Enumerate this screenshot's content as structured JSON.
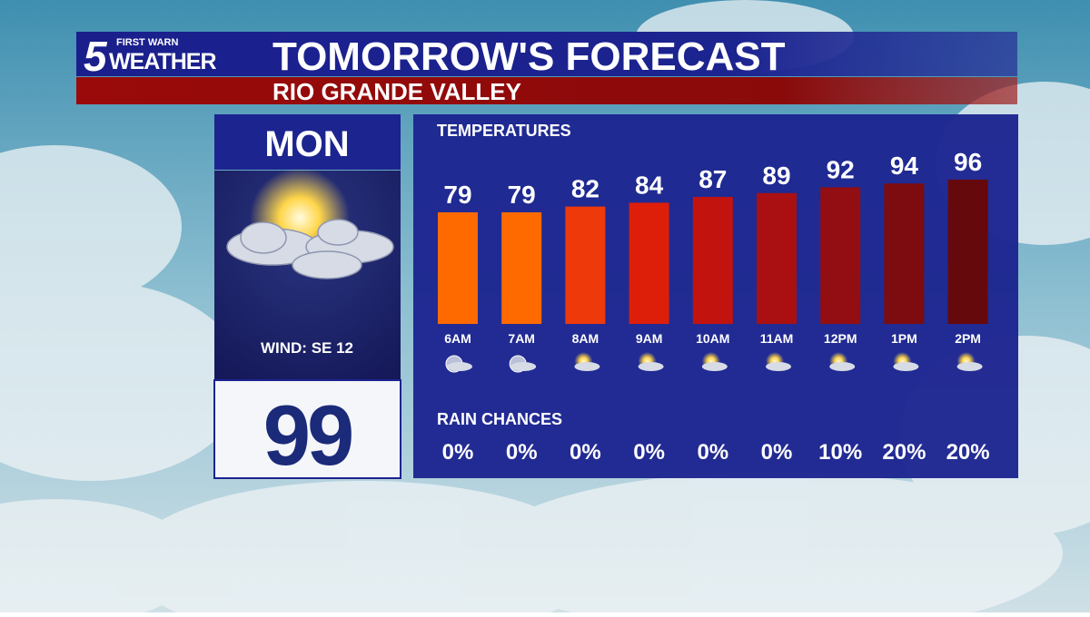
{
  "header": {
    "logo_number": "5",
    "logo_top": "FIRST WARN",
    "logo_bottom": "WEATHER",
    "title": "TOMORROW'S FORECAST",
    "subtitle": "RIO GRANDE VALLEY"
  },
  "day_panel": {
    "day": "MON",
    "wind": "WIND: SE 12",
    "high": 99
  },
  "chart_data": {
    "type": "bar",
    "title": "TEMPERATURES",
    "categories": [
      "6AM",
      "7AM",
      "8AM",
      "9AM",
      "10AM",
      "11AM",
      "12PM",
      "1PM",
      "2PM"
    ],
    "values": [
      79,
      79,
      82,
      84,
      87,
      89,
      92,
      94,
      96
    ],
    "colors": [
      "#ff6a00",
      "#ff6a00",
      "#ee3a0a",
      "#dd1f0a",
      "#c2130e",
      "#aa1012",
      "#920e12",
      "#7c0c10",
      "#66090c"
    ],
    "rain_chances": {
      "title": "RAIN CHANCES",
      "values": [
        0,
        0,
        0,
        0,
        0,
        0,
        10,
        20,
        20
      ],
      "value_labels": [
        "0%",
        "0%",
        "0%",
        "0%",
        "0%",
        "0%",
        "10%",
        "20%",
        "20%"
      ]
    }
  }
}
